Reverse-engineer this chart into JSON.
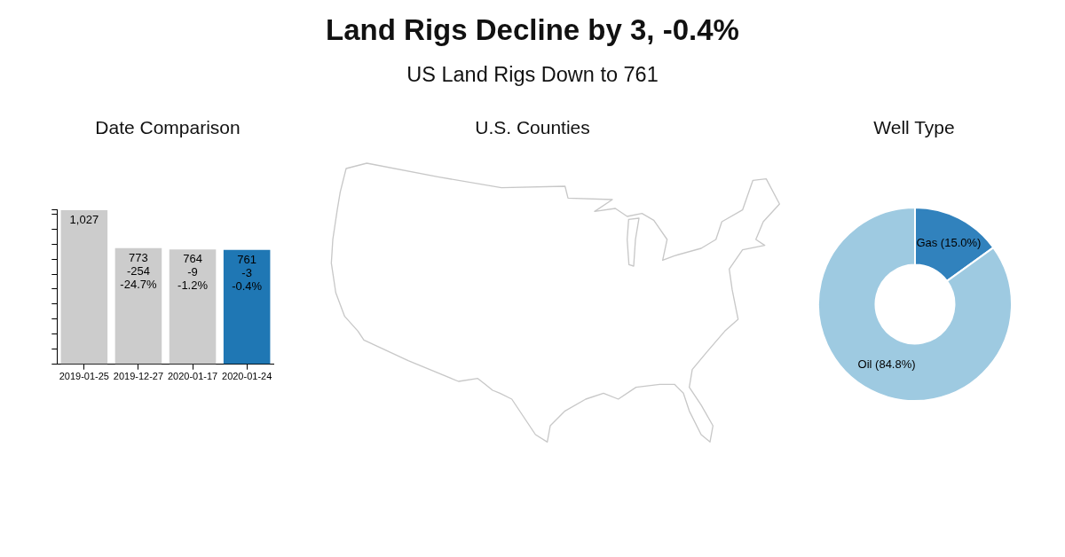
{
  "chart_data": [
    {
      "type": "other",
      "title": "Land Rigs Decline by 3, -0.4%",
      "subtitle": "US Land Rigs Down to 761"
    },
    {
      "type": "bar",
      "title": "Date Comparison",
      "categories": [
        "2019-01-25",
        "2019-12-27",
        "2020-01-17",
        "2020-01-24"
      ],
      "values": [
        1027,
        773,
        764,
        761
      ],
      "colors": [
        "#cccccc",
        "#cccccc",
        "#cccccc",
        "#1f77b4"
      ],
      "value_labels": [
        "1,027",
        "773\n-254\n-24.7%",
        "764\n-9\n-1.2%",
        "761\n-3\n-0.4%"
      ],
      "ylim": [
        0,
        1027
      ],
      "yticks": [
        {
          "value": 0,
          "label": null
        },
        {
          "value": 100,
          "label": null
        },
        {
          "value": 200,
          "label": null
        },
        {
          "value": 300,
          "label": null
        },
        {
          "value": 400,
          "label": null
        },
        {
          "value": 500,
          "label": null
        },
        {
          "value": 600,
          "label": null
        },
        {
          "value": 700,
          "label": null
        },
        {
          "value": 800,
          "label": null
        },
        {
          "value": 900,
          "label": null
        },
        {
          "value": 1000,
          "label": null
        },
        {
          "value": 1027,
          "label": null
        }
      ],
      "tick_labels": "x"
    },
    {
      "type": "other",
      "title": "U.S. Counties"
    },
    {
      "type": "donut",
      "title": "Well Type",
      "categories": [
        "Gas (15.0%)",
        "Oil (84.8%)"
      ],
      "values": [
        15.0,
        84.8
      ],
      "colors": [
        "#3182bd",
        "#9ecae1"
      ]
    }
  ]
}
